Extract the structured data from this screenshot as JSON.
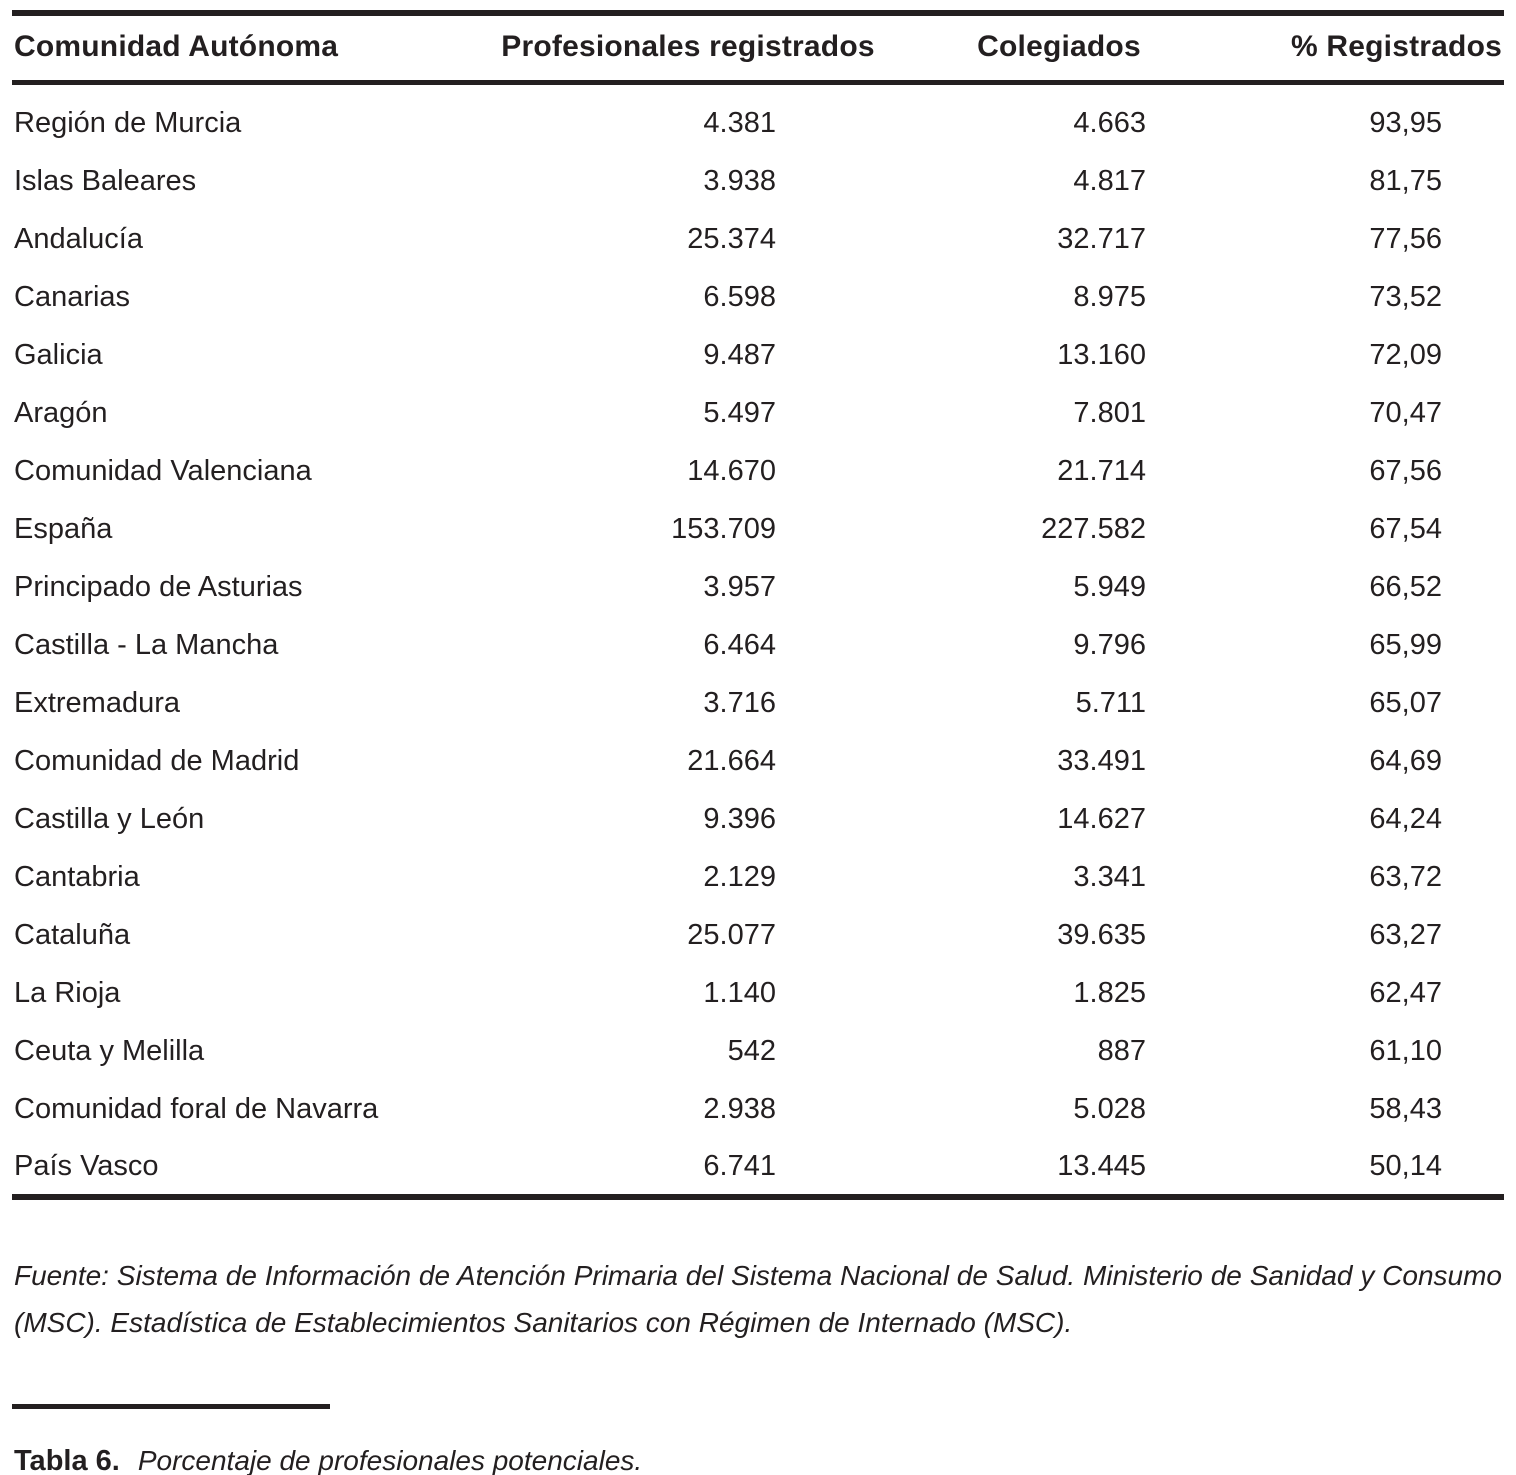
{
  "page": {
    "background": "#ffffff",
    "text_color": "#231f20",
    "rule_color": "#231f20"
  },
  "table": {
    "columns": [
      "Comunidad Autónoma",
      "Profesionales registrados",
      "Colegiados",
      "% Registrados"
    ],
    "rows": [
      [
        "Región de Murcia",
        "4.381",
        "4.663",
        "93,95"
      ],
      [
        "Islas Baleares",
        "3.938",
        "4.817",
        "81,75"
      ],
      [
        "Andalucía",
        "25.374",
        "32.717",
        "77,56"
      ],
      [
        "Canarias",
        "6.598",
        "8.975",
        "73,52"
      ],
      [
        "Galicia",
        "9.487",
        "13.160",
        "72,09"
      ],
      [
        "Aragón",
        "5.497",
        "7.801",
        "70,47"
      ],
      [
        "Comunidad Valenciana",
        "14.670",
        "21.714",
        "67,56"
      ],
      [
        "España",
        "153.709",
        "227.582",
        "67,54"
      ],
      [
        "Principado de Asturias",
        "3.957",
        "5.949",
        "66,52"
      ],
      [
        "Castilla - La Mancha",
        "6.464",
        "9.796",
        "65,99"
      ],
      [
        "Extremadura",
        "3.716",
        "5.711",
        "65,07"
      ],
      [
        "Comunidad de Madrid",
        "21.664",
        "33.491",
        "64,69"
      ],
      [
        "Castilla y León",
        "9.396",
        "14.627",
        "64,24"
      ],
      [
        "Cantabria",
        "2.129",
        "3.341",
        "63,72"
      ],
      [
        "Cataluña",
        "25.077",
        "39.635",
        "63,27"
      ],
      [
        "La Rioja",
        "1.140",
        "1.825",
        "62,47"
      ],
      [
        "Ceuta y Melilla",
        "542",
        "887",
        "61,10"
      ],
      [
        "Comunidad foral de Navarra",
        "2.938",
        "5.028",
        "58,43"
      ],
      [
        "País Vasco",
        "6.741",
        "13.445",
        "50,14"
      ]
    ]
  },
  "source_note": "Fuente: Sistema de Información de Atención Primaria del Sistema Nacional de Salud. Ministerio de Sanidad y Consumo (MSC). Estadística de Establecimientos Sanitarios con Régimen de Internado (MSC).",
  "caption": {
    "label": "Tabla 6.",
    "text": "Porcentaje de profesionales potenciales."
  }
}
